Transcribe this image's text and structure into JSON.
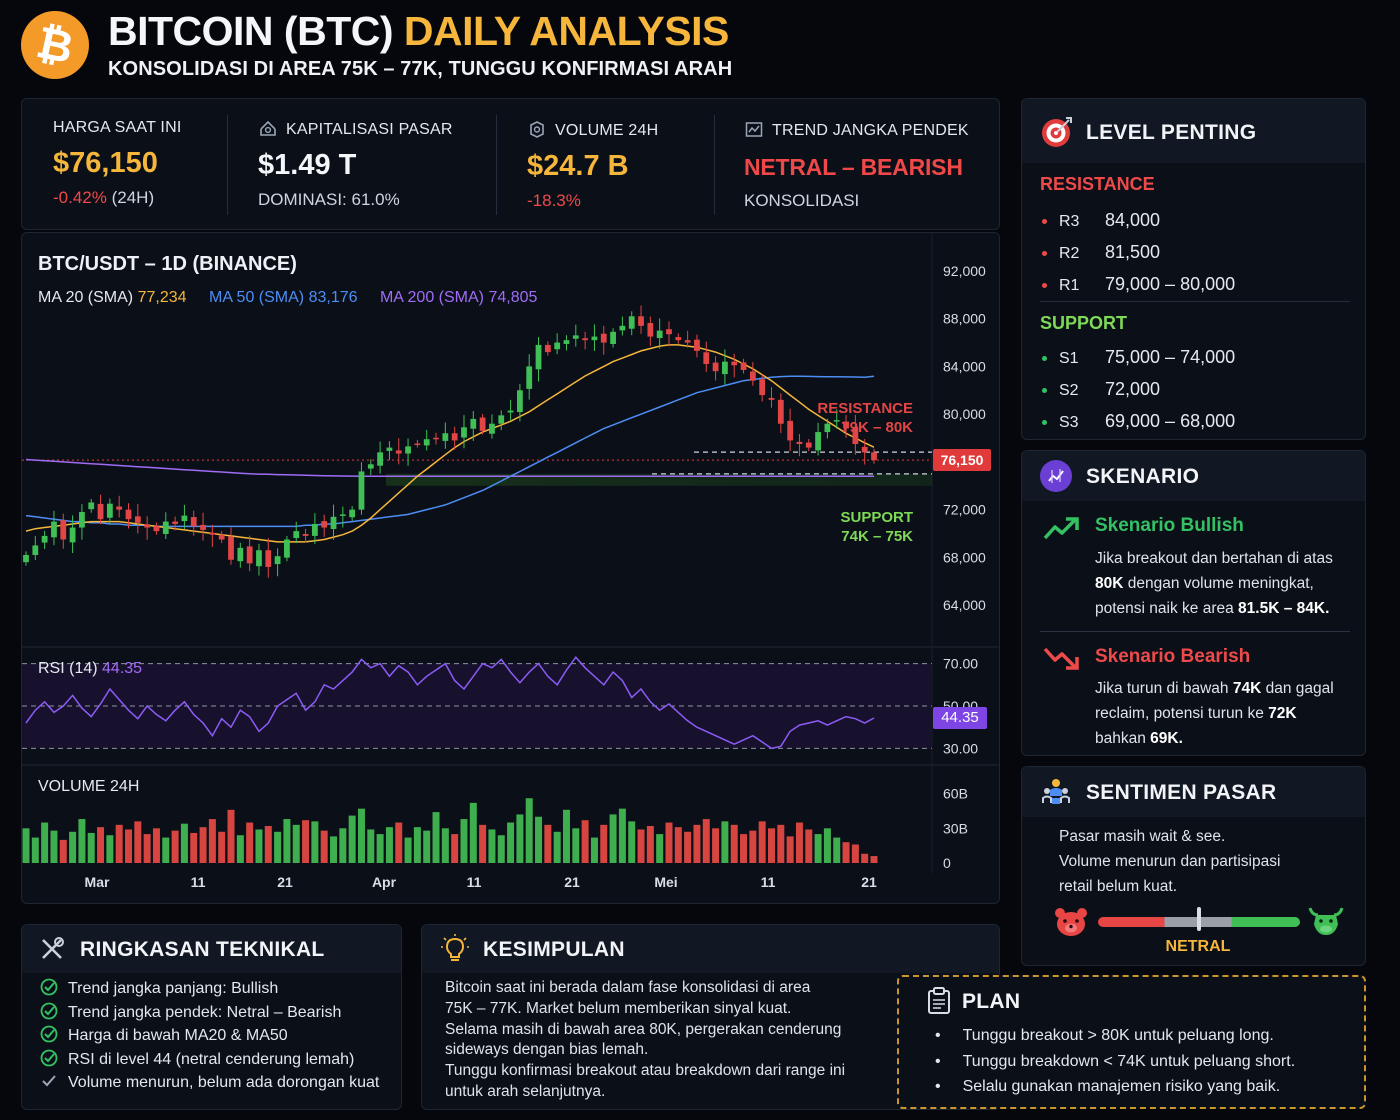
{
  "header": {
    "title_main": "BITCOIN (BTC)",
    "title_accent": "DAILY ANALYSIS",
    "subtitle": "KONSOLIDASI DI AREA 75K – 77K, TUNGGU KONFIRMASI ARAH",
    "logo_glyph": "₿"
  },
  "stats": {
    "price": {
      "label": "HARGA SAAT INI",
      "value": "$76,150",
      "change": "-0.42%",
      "change_suffix": "(24H)"
    },
    "market_cap": {
      "label": "KAPITALISASI PASAR",
      "value": "$1.49 T",
      "sub": "DOMINASI: 61.0%"
    },
    "volume": {
      "label": "VOLUME 24H",
      "value": "$24.7 B",
      "sub": "-18.3%"
    },
    "trend": {
      "label": "TREND JANGKA PENDEK",
      "value": "NETRAL – BEARISH",
      "sub": "KONSOLIDASI"
    }
  },
  "chart_data": {
    "type": "candlestick",
    "title": "BTC/USDT – 1D (BINANCE)",
    "ma": [
      {
        "label": "MA 20 (SMA)",
        "value": "77,234",
        "color": "#f5b63b"
      },
      {
        "label": "MA 50 (SMA)",
        "value": "83,176",
        "color": "#4c8df6"
      },
      {
        "label": "MA 200 (SMA)",
        "value": "74,805",
        "color": "#a06cf5"
      }
    ],
    "ylim": [
      62000,
      93000
    ],
    "yticks": [
      "92,000",
      "88,000",
      "84,000",
      "80,000",
      "76,000",
      "72,000",
      "68,000",
      "64,000"
    ],
    "ytick_values": [
      92000,
      88000,
      84000,
      80000,
      76000,
      72000,
      68000,
      64000
    ],
    "xticks": [
      "Mar",
      "11",
      "21",
      "Apr",
      "11",
      "21",
      "Mei",
      "11",
      "21"
    ],
    "current_price": 76150,
    "current_price_label": "76,150",
    "resistance_zone": {
      "label1": "RESISTANCE",
      "label2": "79K – 80K",
      "low": 79000,
      "high": 80000
    },
    "support_zone": {
      "label1": "SUPPORT",
      "label2": "74K – 75K",
      "low": 74000,
      "high": 75000
    },
    "closes": [
      68200,
      69000,
      69800,
      71000,
      69500,
      70500,
      71800,
      72600,
      71200,
      72500,
      72000,
      71200,
      70900,
      70500,
      70200,
      71000,
      70800,
      71500,
      70600,
      70300,
      69900,
      69500,
      67800,
      68800,
      67500,
      68600,
      67200,
      68100,
      69500,
      70200,
      69800,
      70800,
      70500,
      71400,
      71600,
      72000,
      75200,
      75800,
      76800,
      77200,
      76700,
      77300,
      77500,
      77900,
      78000,
      78400,
      77800,
      78900,
      79600,
      78600,
      79200,
      79900,
      80300,
      82000,
      84000,
      85800,
      85200,
      86000,
      86200,
      86600,
      86200,
      86500,
      86000,
      86900,
      87400,
      88200,
      87400,
      86500,
      87000,
      86700,
      86200,
      86000,
      85300,
      84200,
      83600,
      84400,
      84100,
      83700,
      82800,
      81600,
      81200,
      79200,
      77800,
      77500,
      77200,
      78500,
      79200,
      79500,
      78800,
      77500,
      76800,
      76150
    ],
    "ma20": [
      70200,
      70400,
      70500,
      70600,
      70700,
      70800,
      70900,
      71000,
      71000,
      71000,
      71000,
      70900,
      70800,
      70700,
      70600,
      70500,
      70400,
      70300,
      70200,
      70100,
      70000,
      69900,
      69800,
      69700,
      69600,
      69500,
      69400,
      69300,
      69300,
      69300,
      69300,
      69400,
      69500,
      69700,
      69900,
      70200,
      70700,
      71300,
      72000,
      72700,
      73400,
      74100,
      74800,
      75400,
      76000,
      76600,
      77200,
      77700,
      78100,
      78500,
      78800,
      79100,
      79400,
      79800,
      80200,
      80700,
      81200,
      81700,
      82200,
      82700,
      83200,
      83600,
      84000,
      84400,
      84700,
      85000,
      85300,
      85500,
      85700,
      85800,
      85800,
      85700,
      85600,
      85400,
      85200,
      84900,
      84600,
      84200,
      83800,
      83300,
      82800,
      82200,
      81600,
      81000,
      80400,
      79900,
      79400,
      78900,
      78400,
      78000,
      77600,
      77234
    ],
    "ma50": [
      71500,
      71400,
      71300,
      71200,
      71100,
      71000,
      71000,
      70900,
      70900,
      70800,
      70800,
      70700,
      70700,
      70700,
      70600,
      70600,
      70600,
      70600,
      70600,
      70600,
      70600,
      70600,
      70600,
      70600,
      70600,
      70600,
      70600,
      70600,
      70600,
      70600,
      70700,
      70700,
      70800,
      70800,
      70900,
      71000,
      71100,
      71200,
      71300,
      71400,
      71500,
      71600,
      71800,
      72000,
      72200,
      72400,
      72700,
      73000,
      73300,
      73600,
      74000,
      74400,
      74800,
      75200,
      75600,
      76000,
      76400,
      76800,
      77200,
      77600,
      78000,
      78400,
      78800,
      79100,
      79400,
      79700,
      80000,
      80300,
      80600,
      80900,
      81200,
      81500,
      81800,
      82000,
      82200,
      82400,
      82600,
      82800,
      82900,
      83000,
      83100,
      83150,
      83176,
      83170,
      83160,
      83150,
      83140,
      83130,
      83120,
      83110,
      83100,
      83176
    ],
    "ma200": [
      76200,
      76150,
      76100,
      76050,
      76000,
      75950,
      75900,
      75850,
      75800,
      75750,
      75700,
      75650,
      75600,
      75550,
      75500,
      75450,
      75400,
      75350,
      75300,
      75250,
      75200,
      75150,
      75100,
      75050,
      75000,
      74980,
      74960,
      74940,
      74920,
      74900,
      74880,
      74860,
      74840,
      74830,
      74820,
      74810,
      74800,
      74800,
      74800,
      74800,
      74800,
      74800,
      74800,
      74800,
      74800,
      74800,
      74800,
      74800,
      74800,
      74800,
      74800,
      74800,
      74800,
      74800,
      74800,
      74800,
      74800,
      74800,
      74800,
      74800,
      74800,
      74800,
      74800,
      74800,
      74800,
      74800,
      74800,
      74800,
      74800,
      74800,
      74800,
      74800,
      74800,
      74800,
      74800,
      74800,
      74800,
      74800,
      74800,
      74800,
      74800,
      74800,
      74800,
      74800,
      74800,
      74800,
      74800,
      74800,
      74800,
      74800,
      74800,
      74805
    ],
    "rsi": {
      "label": "RSI (14)",
      "value": "44.35",
      "levels": [
        "70.00",
        "50.00",
        "30.00"
      ],
      "level_values": [
        70,
        50,
        30
      ],
      "values": [
        42,
        48,
        52,
        47,
        50,
        55,
        49,
        45,
        51,
        58,
        53,
        48,
        44,
        50,
        46,
        43,
        48,
        52,
        46,
        42,
        36,
        44,
        40,
        48,
        45,
        38,
        42,
        50,
        53,
        56,
        48,
        52,
        60,
        58,
        62,
        66,
        72,
        68,
        70,
        64,
        69,
        66,
        60,
        64,
        67,
        70,
        62,
        58,
        64,
        70,
        68,
        72,
        66,
        61,
        66,
        70,
        64,
        60,
        67,
        73,
        68,
        64,
        60,
        66,
        62,
        54,
        58,
        52,
        48,
        51,
        47,
        43,
        40,
        38,
        36,
        34,
        32,
        34,
        36,
        33,
        30,
        31,
        38,
        41,
        42,
        43,
        41,
        43,
        45,
        44,
        42,
        44.35
      ]
    },
    "volume": {
      "label": "VOLUME 24H",
      "ticks": [
        "60B",
        "30B",
        "0"
      ],
      "tick_values": [
        60,
        30,
        0
      ],
      "values_b": [
        30,
        22,
        35,
        28,
        20,
        27,
        38,
        26,
        31,
        24,
        33,
        29,
        36,
        25,
        30,
        22,
        28,
        34,
        26,
        31,
        38,
        27,
        46,
        24,
        35,
        29,
        32,
        27,
        38,
        33,
        37,
        36,
        28,
        23,
        30,
        41,
        47,
        29,
        25,
        31,
        35,
        22,
        31,
        28,
        44,
        30,
        25,
        38,
        52,
        33,
        29,
        24,
        35,
        42,
        56,
        40,
        33,
        27,
        46,
        30,
        37,
        22,
        33,
        42,
        47,
        36,
        29,
        32,
        25,
        35,
        31,
        27,
        33,
        38,
        30,
        36,
        33,
        25,
        28,
        36,
        30,
        33,
        23,
        35,
        29,
        25,
        30,
        22,
        18,
        16,
        8,
        6
      ],
      "colors": "mixed"
    }
  },
  "levels": {
    "title": "LEVEL PENTING",
    "resistance_title": "RESISTANCE",
    "resistance": [
      {
        "name": "R3",
        "value": "84,000"
      },
      {
        "name": "R2",
        "value": "81,500"
      },
      {
        "name": "R1",
        "value": "79,000 – 80,000"
      }
    ],
    "support_title": "SUPPORT",
    "support": [
      {
        "name": "S1",
        "value": "75,000 – 74,000"
      },
      {
        "name": "S2",
        "value": "72,000"
      },
      {
        "name": "S3",
        "value": "69,000 – 68,000"
      }
    ]
  },
  "skenario": {
    "title": "SKENARIO",
    "bullish": {
      "title": "Skenario Bullish",
      "l1": "Jika breakout dan bertahan di atas",
      "l2a": "80K",
      "l2b": " dengan volume meningkat,",
      "l3a": "potensi naik ke area ",
      "l3b": "81.5K – 84K."
    },
    "bearish": {
      "title": "Skenario Bearish",
      "l1a": "Jika turun di bawah ",
      "l1b": "74K",
      "l1c": " dan gagal",
      "l2a": "reclaim, potensi turun ke ",
      "l2b": "72K",
      "l3a": "bahkan ",
      "l3b": "69K."
    }
  },
  "sentimen": {
    "title": "SENTIMEN PASAR",
    "lines": [
      "Pasar masih wait & see.",
      "Volume menurun dan partisipasi",
      "retail belum kuat."
    ],
    "gauge_label": "NETRAL",
    "gauge_value": 0.5
  },
  "ringkasan": {
    "title": "RINGKASAN TEKNIKAL",
    "items": [
      "Trend jangka panjang: Bullish",
      "Trend jangka pendek: Netral – Bearish",
      "Harga di bawah MA20 & MA50",
      "RSI di level 44 (netral cenderung lemah)",
      "Volume menurun, belum ada dorongan kuat"
    ]
  },
  "kesimpulan": {
    "title": "KESIMPULAN",
    "lines": [
      "Bitcoin saat ini berada dalam fase konsolidasi di area",
      "75K – 77K. Market belum memberikan sinyal kuat.",
      "Selama masih di bawah area 80K, pergerakan cenderung",
      "sideways dengan bias lemah.",
      "Tunggu konfirmasi breakout atau breakdown dari range ini",
      "untuk arah selanjutnya."
    ]
  },
  "plan": {
    "title": "PLAN",
    "items": [
      "Tunggu breakout > 80K untuk peluang long.",
      "Tunggu breakdown < 74K untuk peluang short.",
      "Selalu gunakan manajemen risiko yang baik."
    ]
  }
}
